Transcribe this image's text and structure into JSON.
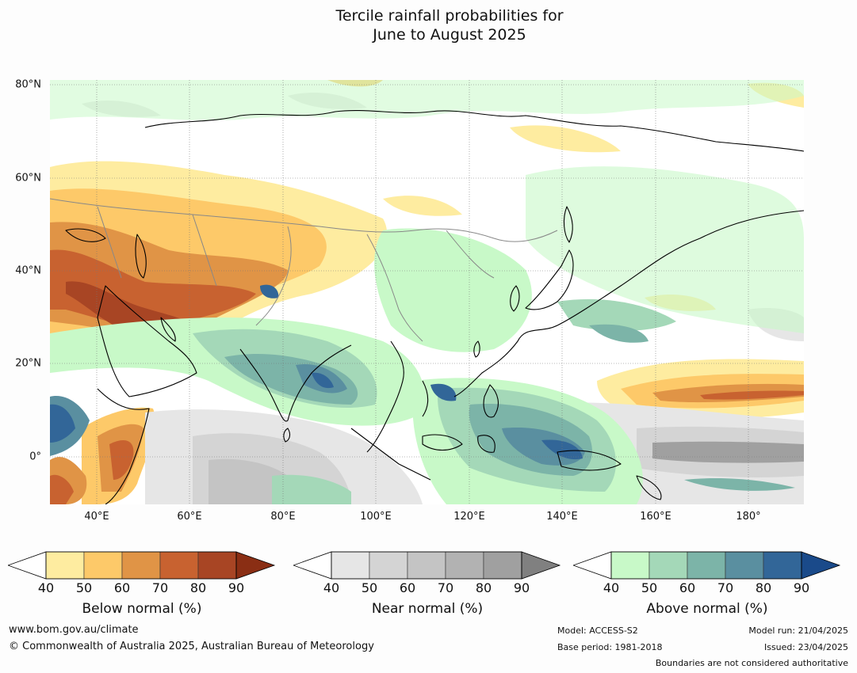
{
  "title": {
    "line1": "Tercile rainfall probabilities for",
    "line2": "June to August 2025"
  },
  "map": {
    "lat_labels": [
      "80°N",
      "60°N",
      "40°N",
      "20°N",
      "0°"
    ],
    "lon_labels": [
      "40°E",
      "60°E",
      "80°E",
      "100°E",
      "120°E",
      "140°E",
      "160°E",
      "180°"
    ]
  },
  "colorbars": [
    {
      "label": "Below normal (%)",
      "ticks": [
        "40",
        "50",
        "60",
        "70",
        "80",
        "90"
      ],
      "colors": [
        "#ffffff",
        "#feeca0",
        "#fdc969",
        "#e09446",
        "#c86230",
        "#a84524",
        "#8a2e14"
      ]
    },
    {
      "label": "Near normal (%)",
      "ticks": [
        "40",
        "50",
        "60",
        "70",
        "80",
        "90"
      ],
      "colors": [
        "#ffffff",
        "#e6e6e6",
        "#d4d4d4",
        "#c4c4c4",
        "#b2b2b2",
        "#a0a0a0",
        "#808080"
      ]
    },
    {
      "label": "Above normal (%)",
      "ticks": [
        "40",
        "50",
        "60",
        "70",
        "80",
        "90"
      ],
      "colors": [
        "#ffffff",
        "#c8f9c8",
        "#a4d8b8",
        "#7cb4a8",
        "#5a8fa0",
        "#326698",
        "#1a4a8a"
      ]
    }
  ],
  "footer": {
    "website": "www.bom.gov.au/climate",
    "copyright": "© Commonwealth of Australia 2025, Australian Bureau of Meteorology",
    "model": "Model: ACCESS-S2",
    "base_period": "Base period: 1981-2018",
    "model_run": "Model run: 21/04/2025",
    "issued": "Issued: 23/04/2025",
    "boundaries": "Boundaries are not considered authoritative"
  }
}
